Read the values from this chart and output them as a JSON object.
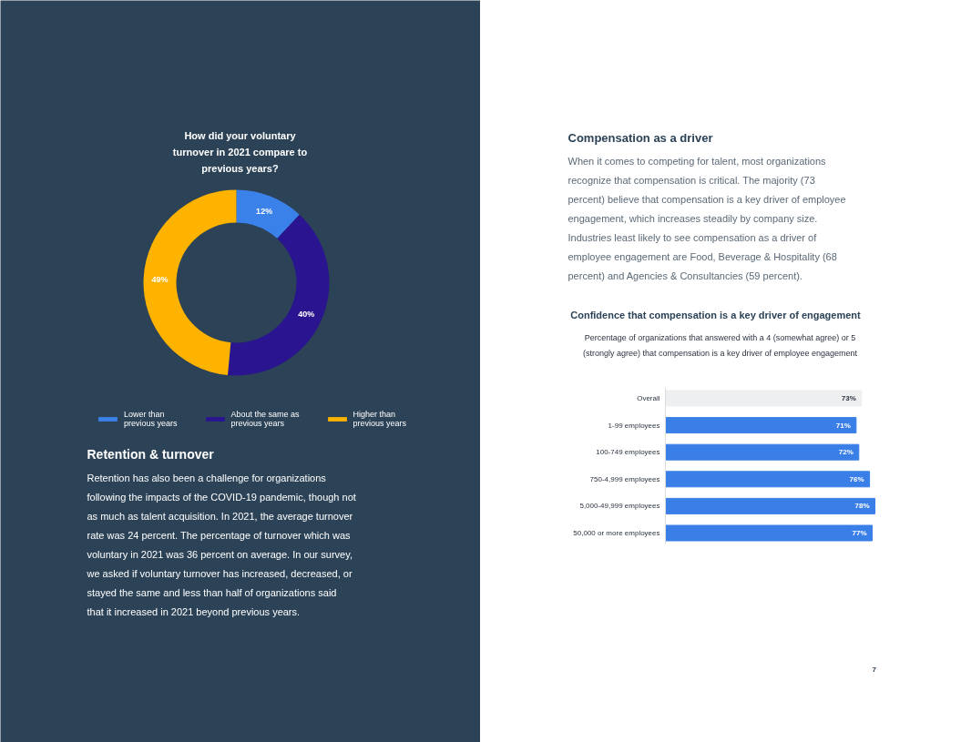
{
  "chart_data": [
    {
      "type": "donut",
      "title": "How did your voluntary turnover in 2021 compare to previous years?",
      "categories": [
        "Lower than previous years",
        "About the same as previous years",
        "Higher than previous years"
      ],
      "values": [
        12,
        40,
        49
      ],
      "colors": [
        "#3a82ea",
        "#2b1490",
        "#fdb300"
      ],
      "value_labels": [
        "12%",
        "40%",
        "49%"
      ],
      "legend": "bottom",
      "annotations": [
        "Retention & turnover",
        "Retention has also been a challenge for organizations following the impacts of the COVID-19 pandemic, though not as much as talent acquisition. In 2021, the average turnover rate was 24 percent. The percentage of turnover which was voluntary in 2021 was 36 percent on average. In our survey, we asked if voluntary turnover has increased, decreased, or stayed the same and less than half of organizations said that it increased in 2021 beyond previous years."
      ]
    },
    {
      "type": "bar",
      "orientation": "horizontal",
      "title": "Confidence that compensation is a key driver of engagement",
      "subtitle": "Percentage of organizations that answered with a 4 (somewhat agree) or 5 (strongly agree) that compensation is a key driver of employee engagement",
      "categories": [
        "Overall",
        "1-99 employees",
        "100-749 employees",
        "750-4,999 employees",
        "5,000-49,999 employees",
        "50,000 or more employees"
      ],
      "values": [
        73,
        71,
        72,
        76,
        78,
        77
      ],
      "colors": [
        "#eeeff0",
        "#3a7fe8",
        "#3a7fe8",
        "#3a7fe8",
        "#3a7fe8",
        "#3a7fe8"
      ],
      "value_labels": [
        "73%",
        "71%",
        "72%",
        "76%",
        "78%",
        "77%"
      ],
      "annotations": [
        "Compensation as a driver",
        "When it comes to competing for talent, most organizations recognize that compensation is critical. The majority (73 percent) believe that compensation is a key driver of employee engagement, which increases steadily by company size. Industries least likely to see compensation as a driver of employee engagement are Food, Beverage & Hospitality (68 percent) and Agencies & Consultancies (59 percent).",
        "7"
      ]
    }
  ]
}
